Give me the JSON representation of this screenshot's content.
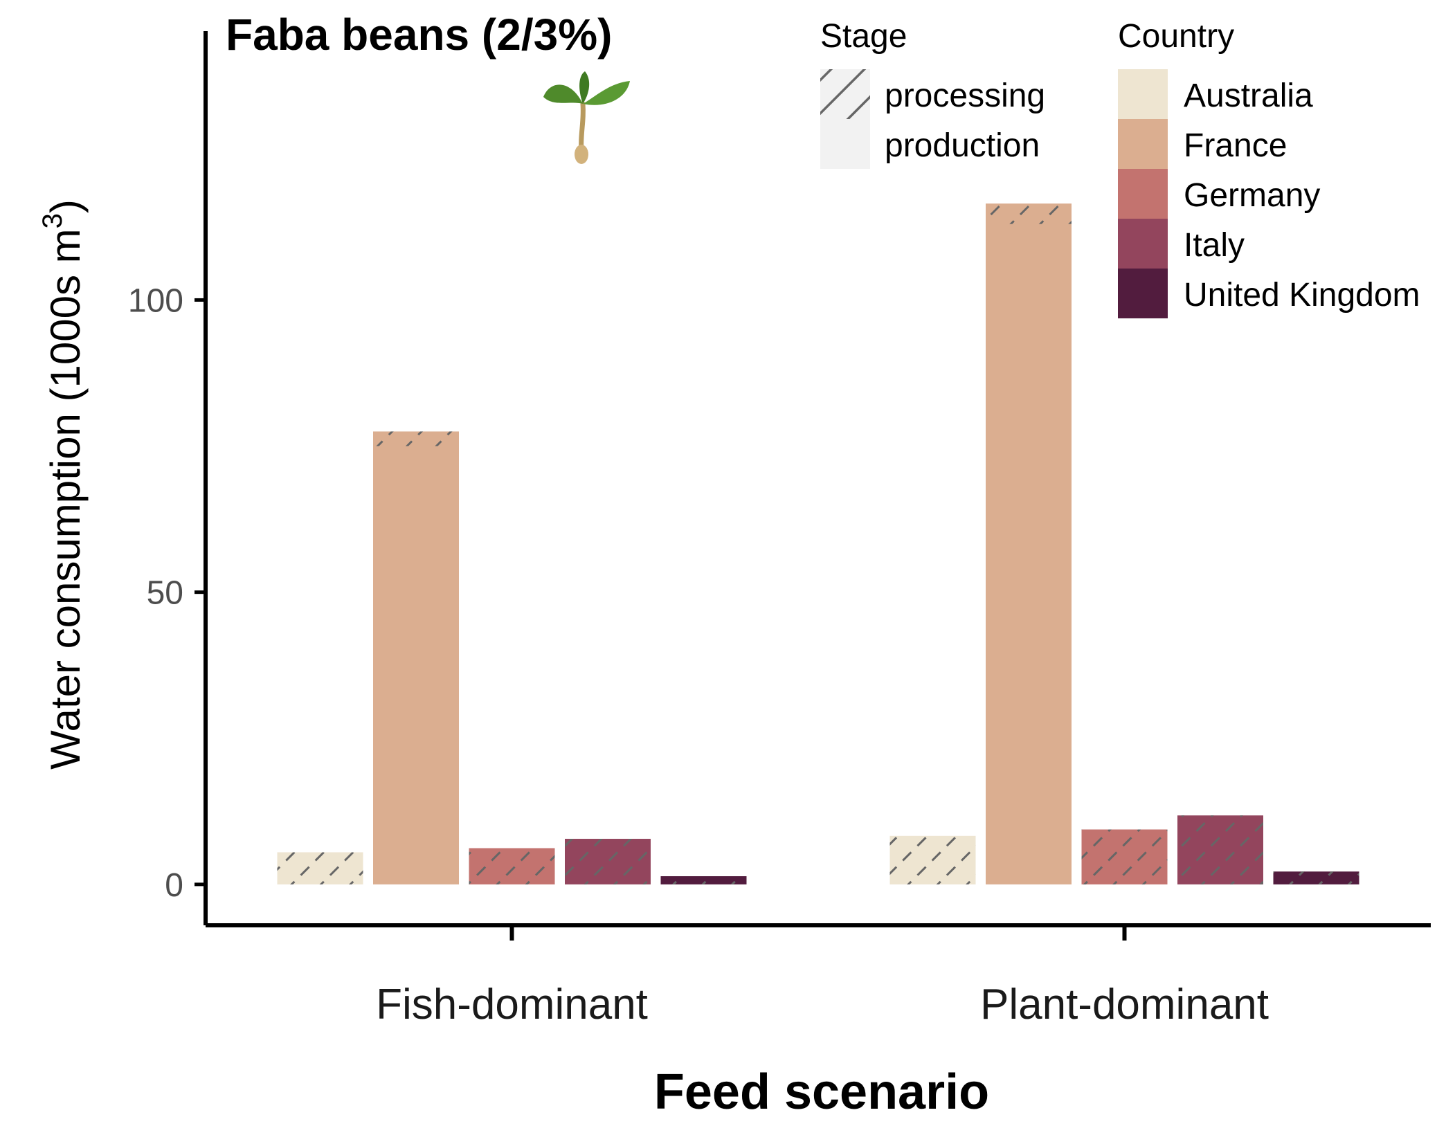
{
  "chart_data": {
    "type": "bar",
    "title": "Faba beans (2/3%)",
    "xlabel": "Feed scenario",
    "ylabel": "Water consumption (1000s m³)",
    "ylabel_main": "Water consumption (1000s m",
    "ylabel_sup": "3",
    "ylabel_close": ")",
    "ylim": [
      -7,
      146
    ],
    "yticks": [
      0,
      50,
      100
    ],
    "categories": [
      "Fish-dominant",
      "Plant-dominant"
    ],
    "stage_legend": {
      "title": "Stage",
      "entries": [
        "processing",
        "production"
      ]
    },
    "country_legend": {
      "title": "Country",
      "entries": [
        {
          "name": "Australia",
          "color": "#eee5d1"
        },
        {
          "name": "France",
          "color": "#dbae90"
        },
        {
          "name": "Germany",
          "color": "#c3736f"
        },
        {
          "name": "Italy",
          "color": "#93455d"
        },
        {
          "name": "United Kingdom",
          "color": "#521c3e"
        }
      ]
    },
    "series": [
      {
        "name": "Australia",
        "values": [
          5.5,
          8.3
        ],
        "processing": [
          5.5,
          8.3
        ]
      },
      {
        "name": "France",
        "values": [
          77.5,
          116.5
        ],
        "processing": [
          2.5,
          3.5
        ]
      },
      {
        "name": "Germany",
        "values": [
          6.2,
          9.4
        ],
        "processing": [
          6.2,
          9.4
        ]
      },
      {
        "name": "Italy",
        "values": [
          7.8,
          11.8
        ],
        "processing": [
          7.8,
          11.8
        ]
      },
      {
        "name": "United Kingdom",
        "values": [
          1.4,
          2.2
        ],
        "processing": [
          1.4,
          2.2
        ]
      }
    ],
    "grid": false,
    "legend_position": "top-right",
    "icon": "sprout-icon",
    "hatch_color": "#666666",
    "axis_color": "#000000"
  }
}
